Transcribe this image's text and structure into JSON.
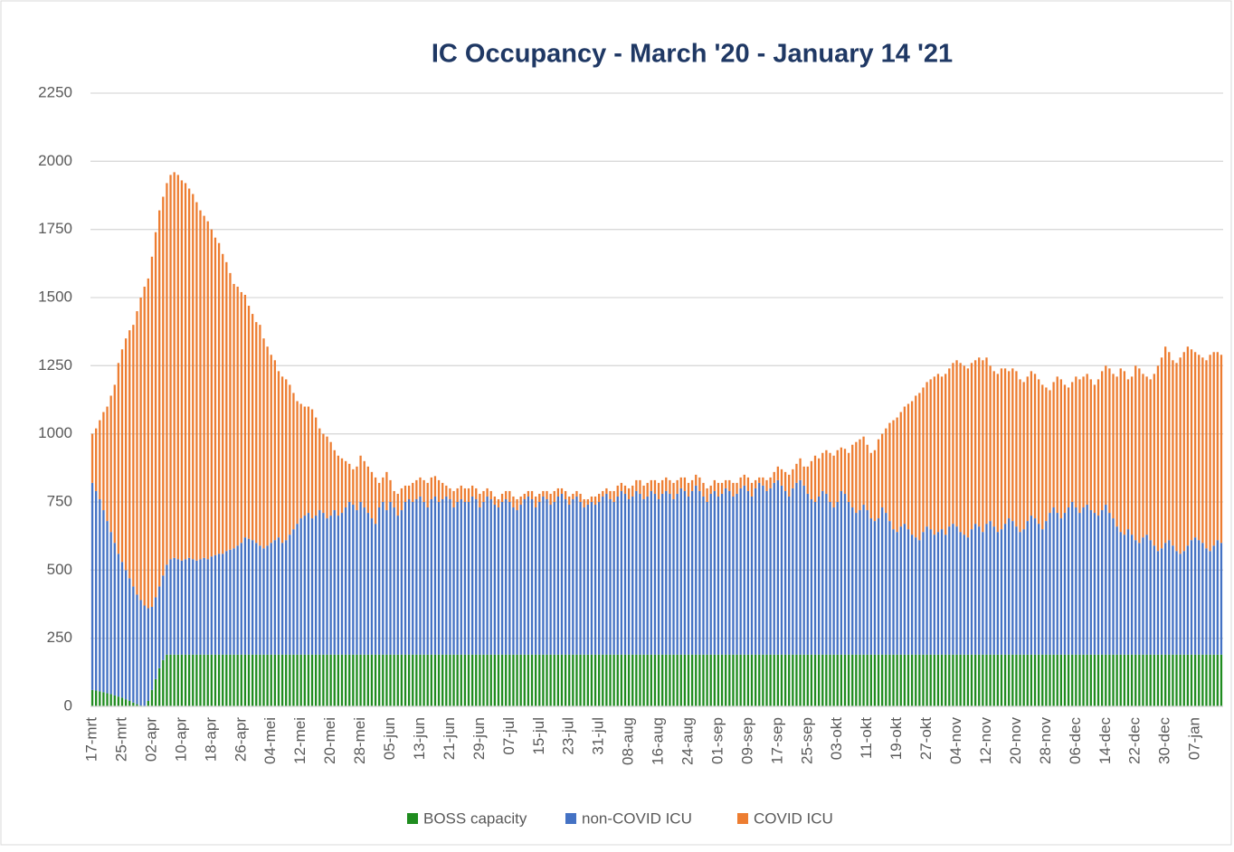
{
  "chart_data": {
    "type": "stacked-bar",
    "title": "IC Occupancy - March '20 - January 14 '21",
    "categories": [
      "17-mrt",
      null,
      null,
      null,
      null,
      null,
      null,
      null,
      "25-mrt",
      null,
      null,
      null,
      null,
      null,
      null,
      null,
      "02-apr",
      null,
      null,
      null,
      null,
      null,
      null,
      null,
      "10-apr",
      null,
      null,
      null,
      null,
      null,
      null,
      null,
      "18-apr",
      null,
      null,
      null,
      null,
      null,
      null,
      null,
      "26-apr",
      null,
      null,
      null,
      null,
      null,
      null,
      null,
      "04-mei",
      null,
      null,
      null,
      null,
      null,
      null,
      null,
      "12-mei",
      null,
      null,
      null,
      null,
      null,
      null,
      null,
      "20-mei",
      null,
      null,
      null,
      null,
      null,
      null,
      null,
      "28-mei",
      null,
      null,
      null,
      null,
      null,
      null,
      null,
      "05-jun",
      null,
      null,
      null,
      null,
      null,
      null,
      null,
      "13-jun",
      null,
      null,
      null,
      null,
      null,
      null,
      null,
      "21-jun",
      null,
      null,
      null,
      null,
      null,
      null,
      null,
      "29-jun",
      null,
      null,
      null,
      null,
      null,
      null,
      null,
      "07-jul",
      null,
      null,
      null,
      null,
      null,
      null,
      null,
      "15-jul",
      null,
      null,
      null,
      null,
      null,
      null,
      null,
      "23-jul",
      null,
      null,
      null,
      null,
      null,
      null,
      null,
      "31-jul",
      null,
      null,
      null,
      null,
      null,
      null,
      null,
      "08-aug",
      null,
      null,
      null,
      null,
      null,
      null,
      null,
      "16-aug",
      null,
      null,
      null,
      null,
      null,
      null,
      null,
      "24-aug",
      null,
      null,
      null,
      null,
      null,
      null,
      null,
      "01-sep",
      null,
      null,
      null,
      null,
      null,
      null,
      null,
      "09-sep",
      null,
      null,
      null,
      null,
      null,
      null,
      null,
      "17-sep",
      null,
      null,
      null,
      null,
      null,
      null,
      null,
      "25-sep",
      null,
      null,
      null,
      null,
      null,
      null,
      null,
      "03-okt",
      null,
      null,
      null,
      null,
      null,
      null,
      null,
      "11-okt",
      null,
      null,
      null,
      null,
      null,
      null,
      null,
      "19-okt",
      null,
      null,
      null,
      null,
      null,
      null,
      null,
      "27-okt",
      null,
      null,
      null,
      null,
      null,
      null,
      null,
      "04-nov",
      null,
      null,
      null,
      null,
      null,
      null,
      null,
      "12-nov",
      null,
      null,
      null,
      null,
      null,
      null,
      null,
      "20-nov",
      null,
      null,
      null,
      null,
      null,
      null,
      null,
      "28-nov",
      null,
      null,
      null,
      null,
      null,
      null,
      null,
      "06-dec",
      null,
      null,
      null,
      null,
      null,
      null,
      null,
      "14-dec",
      null,
      null,
      null,
      null,
      null,
      null,
      null,
      "22-dec",
      null,
      null,
      null,
      null,
      null,
      null,
      null,
      "30-dec",
      null,
      null,
      null,
      null,
      null,
      null,
      null,
      "07-jan",
      null,
      null,
      null,
      null,
      null,
      null,
      null
    ],
    "series": [
      {
        "name": "BOSS capacity",
        "color": "#1f8c1f",
        "values": [
          60,
          58,
          55,
          52,
          48,
          45,
          40,
          36,
          32,
          26,
          20,
          14,
          8,
          3,
          0,
          20,
          60,
          100,
          140,
          170,
          190,
          190,
          190,
          190,
          190,
          190,
          190,
          190,
          190,
          190,
          190,
          190,
          190,
          190,
          190,
          190,
          190,
          190,
          190,
          190,
          190,
          190,
          190,
          190,
          190,
          190,
          190,
          190,
          190,
          190,
          190,
          190,
          190,
          190,
          190,
          190,
          190,
          190,
          190,
          190,
          190,
          190,
          190,
          190,
          190,
          190,
          190,
          190,
          190,
          190,
          190,
          190,
          190,
          190,
          190,
          190,
          190,
          190,
          190,
          190,
          190,
          190,
          190,
          190,
          190,
          190,
          190,
          190,
          190,
          190,
          190,
          190,
          190,
          190,
          190,
          190,
          190,
          190,
          190,
          190,
          190,
          190,
          190,
          190,
          190,
          190,
          190,
          190,
          190,
          190,
          190,
          190,
          190,
          190,
          190,
          190,
          190,
          190,
          190,
          190,
          190,
          190,
          190,
          190,
          190,
          190,
          190,
          190,
          190,
          190,
          190,
          190,
          190,
          190,
          190,
          190,
          190,
          190,
          190,
          190,
          190,
          190,
          190,
          190,
          190,
          190,
          190,
          190,
          190,
          190,
          190,
          190,
          190,
          190,
          190,
          190,
          190,
          190,
          190,
          190,
          190,
          190,
          190,
          190,
          190,
          190,
          190,
          190,
          190,
          190,
          190,
          190,
          190,
          190,
          190,
          190,
          190,
          190,
          190,
          190,
          190,
          190,
          190,
          190,
          190,
          190,
          190,
          190,
          190,
          190,
          190,
          190,
          190,
          190,
          190,
          190,
          190,
          190,
          190,
          190,
          190,
          190,
          190,
          190,
          190,
          190,
          190,
          190,
          190,
          190,
          190,
          190,
          190,
          190,
          190,
          190,
          190,
          190,
          190,
          190,
          190,
          190,
          190,
          190,
          190,
          190,
          190,
          190,
          190,
          190,
          190,
          190,
          190,
          190,
          190,
          190,
          190,
          190,
          190,
          190,
          190,
          190,
          190,
          190,
          190,
          190,
          190,
          190,
          190,
          190,
          190,
          190,
          190,
          190,
          190,
          190,
          190,
          190,
          190,
          190,
          190,
          190,
          190,
          190,
          190,
          190,
          190,
          190,
          190,
          190,
          190,
          190,
          190,
          190,
          190,
          190,
          190,
          190,
          190,
          190,
          190,
          190,
          190,
          190,
          190,
          190,
          190,
          190,
          190,
          190,
          190,
          190,
          190,
          190,
          190,
          190,
          190,
          190,
          190,
          190,
          190,
          190,
          190,
          190
        ]
      },
      {
        "name": "non-COVID ICU",
        "color": "#4472c4",
        "values": [
          760,
          732,
          705,
          668,
          632,
          595,
          560,
          524,
          498,
          474,
          450,
          426,
          402,
          387,
          370,
          340,
          305,
          300,
          300,
          310,
          330,
          350,
          355,
          350,
          345,
          350,
          355,
          350,
          345,
          350,
          355,
          350,
          360,
          365,
          370,
          370,
          380,
          385,
          390,
          400,
          410,
          430,
          425,
          420,
          410,
          400,
          390,
          400,
          410,
          420,
          430,
          410,
          420,
          440,
          460,
          480,
          500,
          510,
          520,
          500,
          510,
          530,
          520,
          500,
          510,
          530,
          510,
          520,
          540,
          560,
          550,
          530,
          560,
          540,
          520,
          500,
          480,
          540,
          560,
          530,
          560,
          540,
          510,
          530,
          560,
          570,
          560,
          570,
          580,
          560,
          540,
          570,
          580,
          560,
          570,
          580,
          570,
          540,
          560,
          570,
          560,
          560,
          580,
          570,
          540,
          560,
          580,
          570,
          550,
          540,
          560,
          570,
          560,
          540,
          530,
          550,
          570,
          580,
          570,
          540,
          560,
          580,
          570,
          550,
          560,
          580,
          590,
          570,
          550,
          570,
          580,
          560,
          540,
          550,
          560,
          550,
          560,
          580,
          590,
          570,
          560,
          580,
          600,
          590,
          570,
          580,
          600,
          590,
          570,
          580,
          600,
          590,
          570,
          590,
          600,
          590,
          570,
          590,
          610,
          600,
          580,
          600,
          620,
          600,
          580,
          560,
          590,
          600,
          580,
          590,
          610,
          600,
          580,
          590,
          610,
          620,
          600,
          580,
          610,
          630,
          620,
          600,
          610,
          630,
          640,
          620,
          600,
          580,
          610,
          630,
          640,
          620,
          590,
          570,
          560,
          580,
          600,
          590,
          560,
          540,
          560,
          600,
          590,
          560,
          540,
          520,
          530,
          550,
          530,
          500,
          490,
          500,
          540,
          520,
          490,
          460,
          450,
          470,
          480,
          460,
          440,
          430,
          420,
          450,
          470,
          460,
          440,
          450,
          460,
          440,
          470,
          480,
          470,
          450,
          440,
          430,
          460,
          480,
          470,
          450,
          480,
          490,
          470,
          450,
          460,
          480,
          500,
          490,
          470,
          450,
          460,
          490,
          510,
          500,
          480,
          460,
          490,
          520,
          540,
          520,
          500,
          520,
          540,
          560,
          540,
          520,
          540,
          550,
          530,
          520,
          510,
          530,
          550,
          520,
          500,
          470,
          450,
          440,
          460,
          440,
          420,
          410,
          430,
          440,
          420,
          400,
          380,
          390,
          410,
          420,
          400,
          380,
          370,
          380,
          400,
          420,
          430,
          420,
          410,
          390,
          380,
          400,
          420,
          410
        ]
      },
      {
        "name": "COVID ICU",
        "color": "#ed7d31",
        "values": [
          180,
          230,
          290,
          360,
          420,
          500,
          580,
          700,
          780,
          850,
          910,
          960,
          1040,
          1110,
          1170,
          1210,
          1285,
          1340,
          1380,
          1390,
          1400,
          1410,
          1415,
          1410,
          1395,
          1380,
          1355,
          1340,
          1315,
          1280,
          1255,
          1240,
          1200,
          1165,
          1140,
          1100,
          1060,
          1015,
          970,
          950,
          920,
          890,
          855,
          830,
          810,
          810,
          770,
          730,
          690,
          660,
          610,
          610,
          590,
          550,
          500,
          450,
          420,
          400,
          390,
          400,
          360,
          300,
          290,
          300,
          270,
          220,
          220,
          200,
          170,
          140,
          130,
          160,
          170,
          170,
          170,
          170,
          170,
          90,
          90,
          140,
          80,
          60,
          80,
          80,
          60,
          50,
          70,
          70,
          70,
          80,
          90,
          80,
          75,
          80,
          60,
          40,
          40,
          60,
          50,
          50,
          50,
          50,
          40,
          40,
          50,
          40,
          30,
          30,
          30,
          30,
          30,
          30,
          40,
          40,
          40,
          30,
          20,
          20,
          30,
          40,
          30,
          20,
          30,
          40,
          40,
          30,
          20,
          30,
          30,
          20,
          20,
          30,
          30,
          20,
          20,
          30,
          30,
          20,
          20,
          30,
          40,
          40,
          30,
          30,
          40,
          40,
          40,
          50,
          50,
          50,
          40,
          50,
          60,
          50,
          50,
          50,
          60,
          50,
          40,
          50,
          50,
          40,
          40,
          50,
          50,
          50,
          30,
          40,
          50,
          40,
          30,
          40,
          50,
          40,
          40,
          40,
          50,
          50,
          30,
          20,
          30,
          40,
          40,
          40,
          50,
          60,
          70,
          80,
          70,
          70,
          80,
          70,
          100,
          140,
          170,
          140,
          140,
          160,
          180,
          190,
          190,
          160,
          165,
          180,
          230,
          260,
          260,
          250,
          240,
          240,
          260,
          290,
          270,
          310,
          360,
          400,
          420,
          420,
          430,
          460,
          490,
          520,
          540,
          530,
          530,
          550,
          580,
          580,
          560,
          590,
          580,
          590,
          610,
          620,
          620,
          620,
          610,
          600,
          620,
          630,
          610,
          570,
          570,
          580,
          590,
          570,
          540,
          560,
          570,
          560,
          540,
          530,
          530,
          530,
          530,
          530,
          490,
          450,
          460,
          500,
          510,
          470,
          440,
          440,
          480,
          490,
          480,
          480,
          480,
          470,
          500,
          510,
          510,
          530,
          530,
          550,
          600,
          600,
          550,
          580,
          640,
          640,
          600,
          580,
          590,
          630,
          680,
          700,
          720,
          690,
          680,
          690,
          720,
          730,
          730,
          700,
          680,
          680,
          680,
          690,
          720,
          710,
          690,
          690
        ]
      }
    ],
    "ylim": [
      0,
      2250
    ],
    "yticks": [
      0,
      250,
      500,
      750,
      1000,
      1250,
      1500,
      1750,
      2000,
      2250
    ],
    "grid": true,
    "legend": "bottom"
  }
}
